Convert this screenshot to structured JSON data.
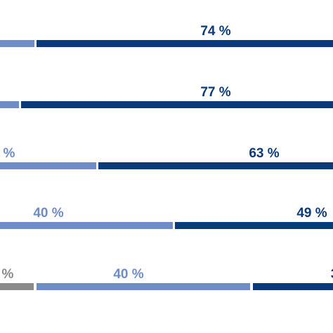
{
  "chart_data": {
    "type": "bar",
    "orientation": "horizontal",
    "stacked": true,
    "cropped": true,
    "colors": {
      "gray": "#8a8a8a",
      "light_blue": "#6f8cc7",
      "dark_blue": "#0b3a7a"
    },
    "rows": [
      {
        "segments": [
          {
            "color": "light_blue",
            "start": -5,
            "end": 49
          },
          {
            "color": "dark_blue",
            "start": 52,
            "end": 480
          }
        ],
        "labels": [
          {
            "text": "74 %",
            "color": "dark_blue",
            "at": 307
          }
        ]
      },
      {
        "segments": [
          {
            "color": "light_blue",
            "start": -5,
            "end": 27
          },
          {
            "color": "dark_blue",
            "start": 30,
            "end": 480
          }
        ],
        "labels": [
          {
            "text": "77 %",
            "color": "dark_blue",
            "at": 307
          }
        ]
      },
      {
        "segments": [
          {
            "color": "light_blue",
            "start": -5,
            "end": 137
          },
          {
            "color": "dark_blue",
            "start": 140,
            "end": 480
          }
        ],
        "labels": [
          {
            "text": "%",
            "color": "light_blue",
            "at": 13
          },
          {
            "text": "63 %",
            "color": "dark_blue",
            "at": 376
          }
        ]
      },
      {
        "segments": [
          {
            "color": "light_blue",
            "start": -5,
            "end": 246
          },
          {
            "color": "dark_blue",
            "start": 249,
            "end": 480
          }
        ],
        "labels": [
          {
            "text": "40 %",
            "color": "light_blue",
            "at": 69
          },
          {
            "text": "49 %",
            "color": "dark_blue",
            "at": 444
          }
        ]
      },
      {
        "segments": [
          {
            "color": "gray",
            "start": -5,
            "end": 48
          },
          {
            "color": "light_blue",
            "start": 52,
            "end": 356
          },
          {
            "color": "dark_blue",
            "start": 360,
            "end": 480
          }
        ],
        "labels": [
          {
            "text": "%",
            "color": "gray",
            "at": 11
          },
          {
            "text": "40 %",
            "color": "light_blue",
            "at": 183
          },
          {
            "text": "3",
            "color": "dark_blue",
            "at": 476
          }
        ]
      }
    ]
  }
}
